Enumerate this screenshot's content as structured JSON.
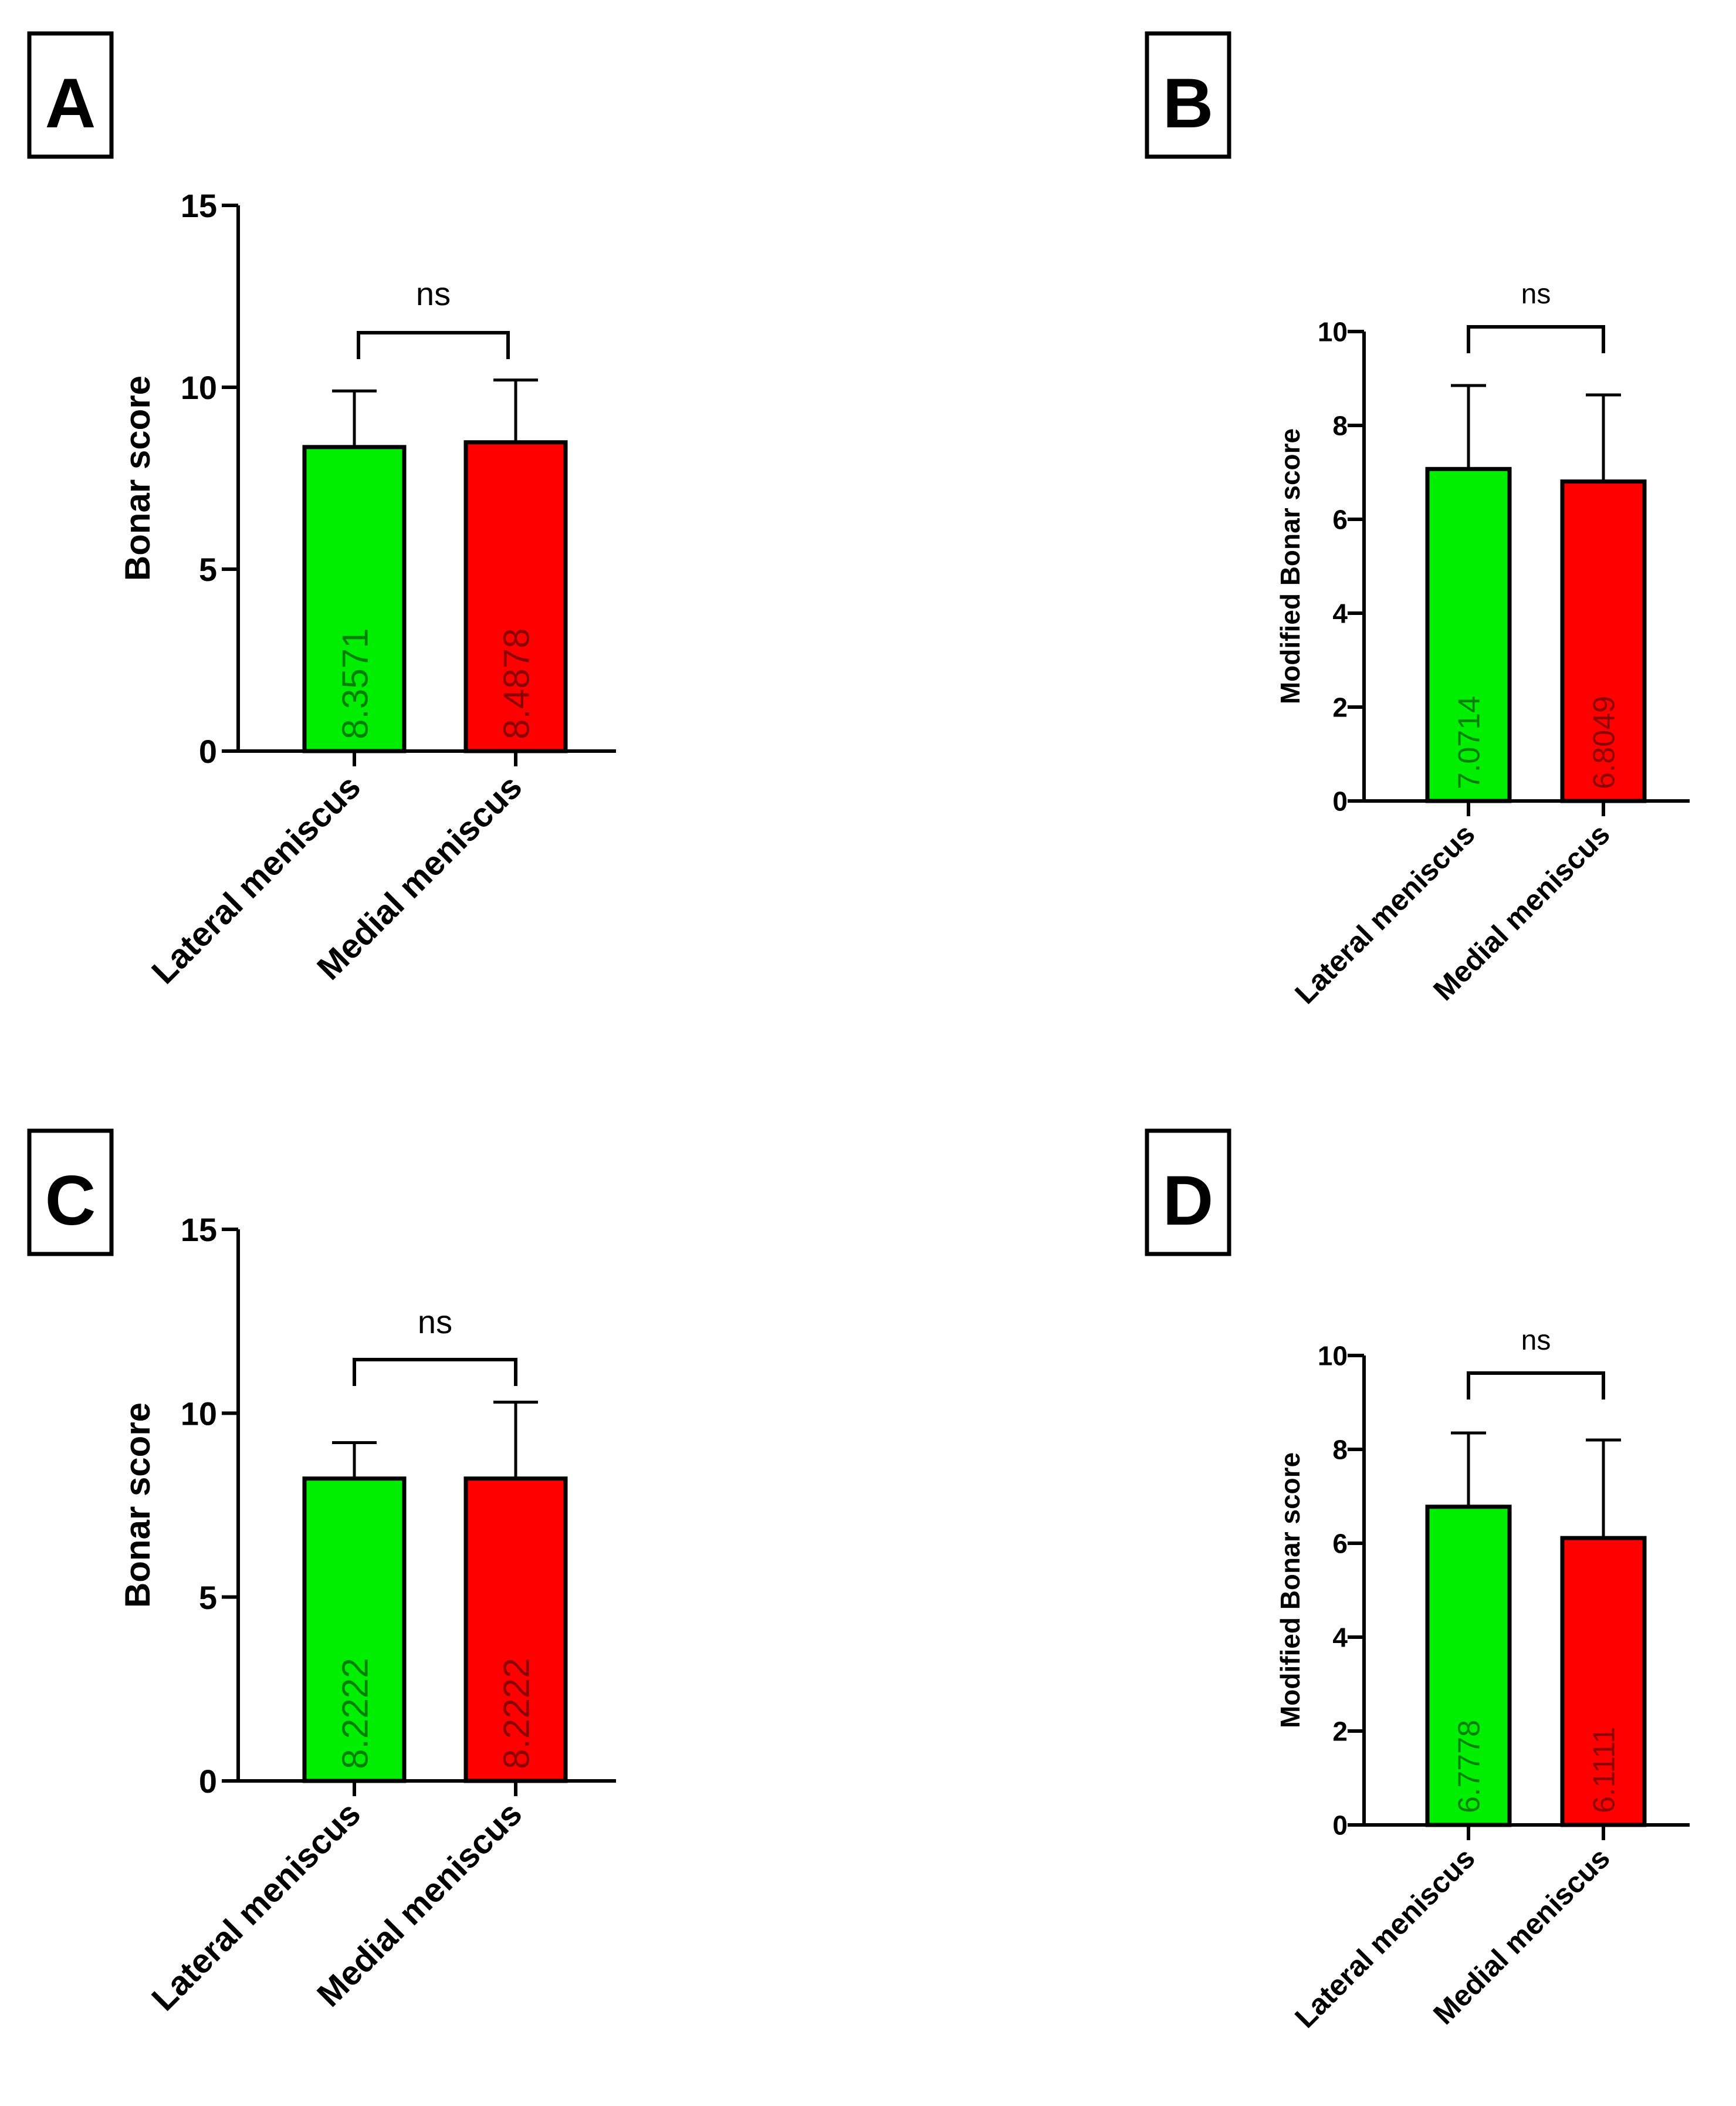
{
  "colors": {
    "lateral": "#00ee00",
    "medial": "#ff0000",
    "lateral_label": "#007f00",
    "medial_label": "#8b0000",
    "axis": "#000000"
  },
  "chart_data": [
    {
      "panel": "A",
      "type": "bar",
      "ylabel": "Bonar score",
      "ylim": [
        0,
        15
      ],
      "yticks": [
        0,
        5,
        10,
        15
      ],
      "categories": [
        "Lateral meniscus",
        "Medial meniscus"
      ],
      "values": [
        8.3571,
        8.4878
      ],
      "value_labels": [
        "8.3571",
        "8.4878"
      ],
      "error_upper": [
        9.9,
        10.2
      ],
      "significance": "ns"
    },
    {
      "panel": "B",
      "type": "bar",
      "ylabel": "Modified Bonar score",
      "ylim": [
        0,
        10
      ],
      "yticks": [
        0,
        2,
        4,
        6,
        8,
        10
      ],
      "categories": [
        "Lateral meniscus",
        "Medial meniscus"
      ],
      "values": [
        7.0714,
        6.8049
      ],
      "value_labels": [
        "7.0714",
        "6.8049"
      ],
      "error_upper": [
        8.85,
        8.65
      ],
      "significance": "ns"
    },
    {
      "panel": "C",
      "type": "bar",
      "ylabel": "Bonar score",
      "ylim": [
        0,
        15
      ],
      "yticks": [
        0,
        5,
        10,
        15
      ],
      "categories": [
        "Lateral meniscus",
        "Medial meniscus"
      ],
      "values": [
        8.2222,
        8.2222
      ],
      "value_labels": [
        "8.2222",
        "8.2222"
      ],
      "error_upper": [
        9.2,
        10.3
      ],
      "significance": "ns"
    },
    {
      "panel": "D",
      "type": "bar",
      "ylabel": "Modified Bonar score",
      "ylim": [
        0,
        10
      ],
      "yticks": [
        0,
        2,
        4,
        6,
        8,
        10
      ],
      "categories": [
        "Lateral meniscus",
        "Medial meniscus"
      ],
      "values": [
        6.7778,
        6.1111
      ],
      "value_labels": [
        "6.7778",
        "6.1111"
      ],
      "error_upper": [
        8.35,
        8.2
      ],
      "significance": "ns"
    }
  ]
}
